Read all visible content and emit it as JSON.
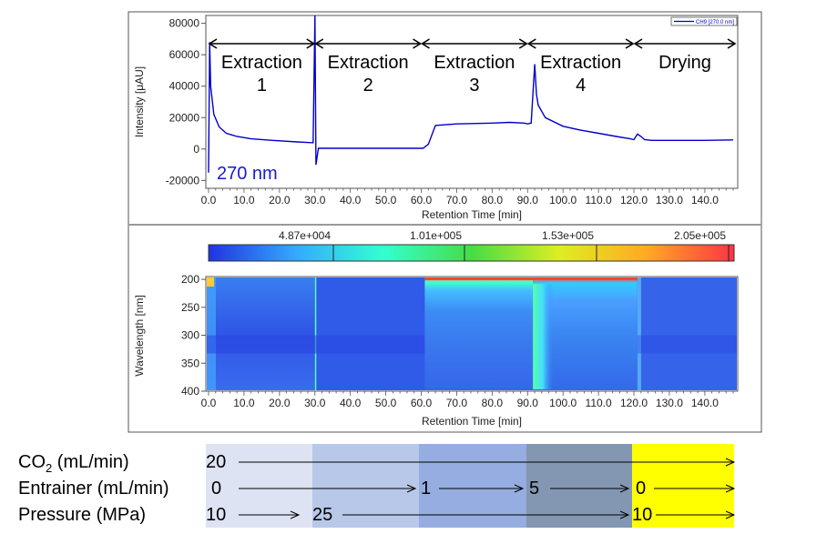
{
  "chart_data": [
    {
      "type": "line",
      "xlabel": "Retention Time [min]",
      "ylabel": "Intensity [μAU]",
      "xlim": [
        0,
        148
      ],
      "ylim": [
        -25000,
        85000
      ],
      "x_ticks": [
        "0.0",
        "10.0",
        "20.0",
        "30.0",
        "40.0",
        "50.0",
        "60.0",
        "70.0",
        "80.0",
        "90.0",
        "100.0",
        "110.0",
        "120.0",
        "130.0",
        "140.0"
      ],
      "y_ticks": [
        "80000",
        "60000",
        "40000",
        "20000",
        "0",
        "-20000"
      ],
      "legend": "CH9 [270.0 nm]",
      "legend_position": "top-right",
      "wavelength_label": "270 nm",
      "series": [
        {
          "name": "CH9 [270.0 nm]",
          "x": [
            0,
            0.3,
            0.6,
            1.5,
            3,
            5,
            8,
            12,
            18,
            25,
            29.5,
            30,
            30.3,
            31,
            35,
            45,
            55,
            60.5,
            62,
            64,
            70,
            80,
            85,
            89,
            90,
            91,
            92,
            92.5,
            93,
            95,
            100,
            105,
            110,
            115,
            119,
            120,
            121,
            122,
            123,
            125,
            130,
            140,
            148
          ],
          "y": [
            -15000,
            68000,
            40000,
            22000,
            14000,
            10000,
            8000,
            6500,
            5500,
            4500,
            4000,
            85000,
            -10000,
            500,
            500,
            500,
            500,
            500,
            3000,
            15000,
            16000,
            16500,
            17000,
            16500,
            16000,
            16500,
            54000,
            35000,
            28000,
            20000,
            14500,
            12000,
            10000,
            8000,
            6500,
            6000,
            9500,
            8000,
            6000,
            5500,
            5500,
            5500,
            5800
          ]
        }
      ]
    },
    {
      "type": "heatmap",
      "xlabel": "Retention Time [min]",
      "ylabel": "Wavelength [nm]",
      "xlim": [
        0,
        148
      ],
      "ylim": [
        195,
        400
      ],
      "x_ticks": [
        "0.0",
        "10.0",
        "20.0",
        "30.0",
        "40.0",
        "50.0",
        "60.0",
        "70.0",
        "80.0",
        "90.0",
        "100.0",
        "110.0",
        "120.0",
        "130.0",
        "140.0"
      ],
      "y_ticks": [
        "200",
        "250",
        "300",
        "350",
        "400"
      ],
      "colorbar_ticks": [
        "4.87e+004",
        "1.01e+005",
        "1.53e+005",
        "2.05e+005"
      ],
      "colors": [
        "#2233e0",
        "#33aaff",
        "#33ffd0",
        "#44dd44",
        "#ddee22",
        "#ffaa22",
        "#ff3344"
      ]
    }
  ],
  "conditions": {
    "co2_label": "CO",
    "co2_subscript": "2",
    "co2_unit": " (mL/min)",
    "entrainer_label": "Entrainer (mL/min)",
    "pressure_label": "Pressure (MPa)",
    "co2_values": [
      "20"
    ],
    "entrainer_values": [
      "0",
      "1",
      "5",
      "0"
    ],
    "pressure_values": [
      "10",
      "25",
      "10"
    ],
    "stage_colors": [
      "#dde3f2",
      "#b8c8e8",
      "#95ade0",
      "#8397b2",
      "#ffff00"
    ]
  },
  "stages": [
    {
      "name": "Extraction",
      "number": "1"
    },
    {
      "name": "Extraction",
      "number": "2"
    },
    {
      "name": "Extraction",
      "number": "3"
    },
    {
      "name": "Extraction",
      "number": "4"
    },
    {
      "name": "Drying",
      "number": ""
    }
  ],
  "stage_boundaries": [
    0,
    30,
    60,
    90,
    120,
    150
  ]
}
